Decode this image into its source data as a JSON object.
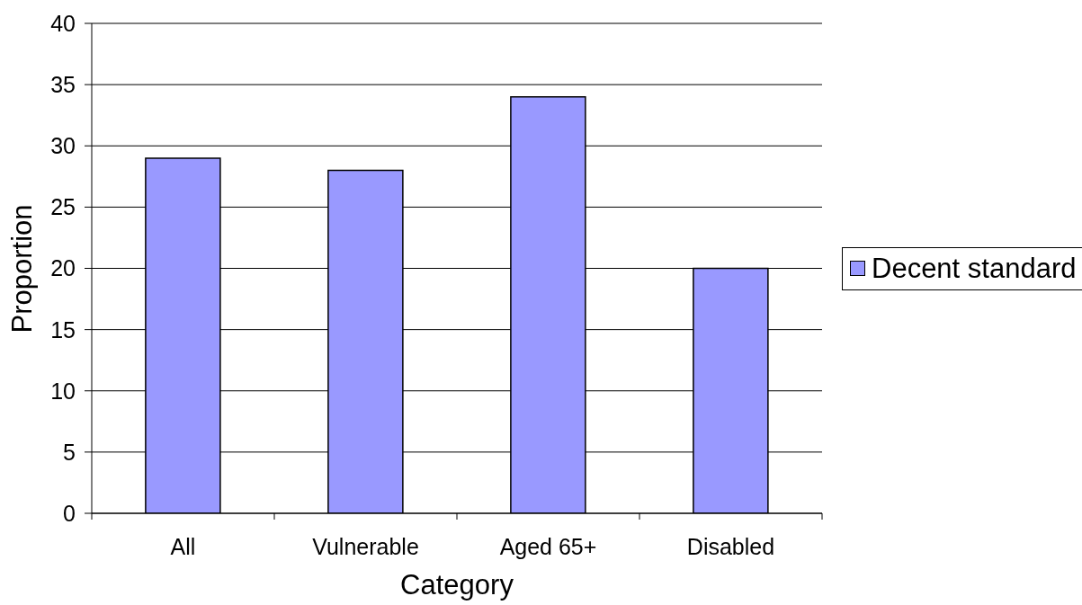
{
  "chart_data": {
    "type": "bar",
    "xlabel": "Category",
    "ylabel": "Proportion",
    "categories": [
      "All",
      "Vulnerable",
      "Aged 65+",
      "Disabled"
    ],
    "series": [
      {
        "name": "Decent standard",
        "color": "#9999ff",
        "values": [
          29,
          28,
          34,
          20
        ]
      }
    ],
    "ylim": [
      0,
      40
    ],
    "yticks": [
      0,
      5,
      10,
      15,
      20,
      25,
      30,
      35,
      40
    ],
    "grid": "y",
    "legend": "right"
  }
}
